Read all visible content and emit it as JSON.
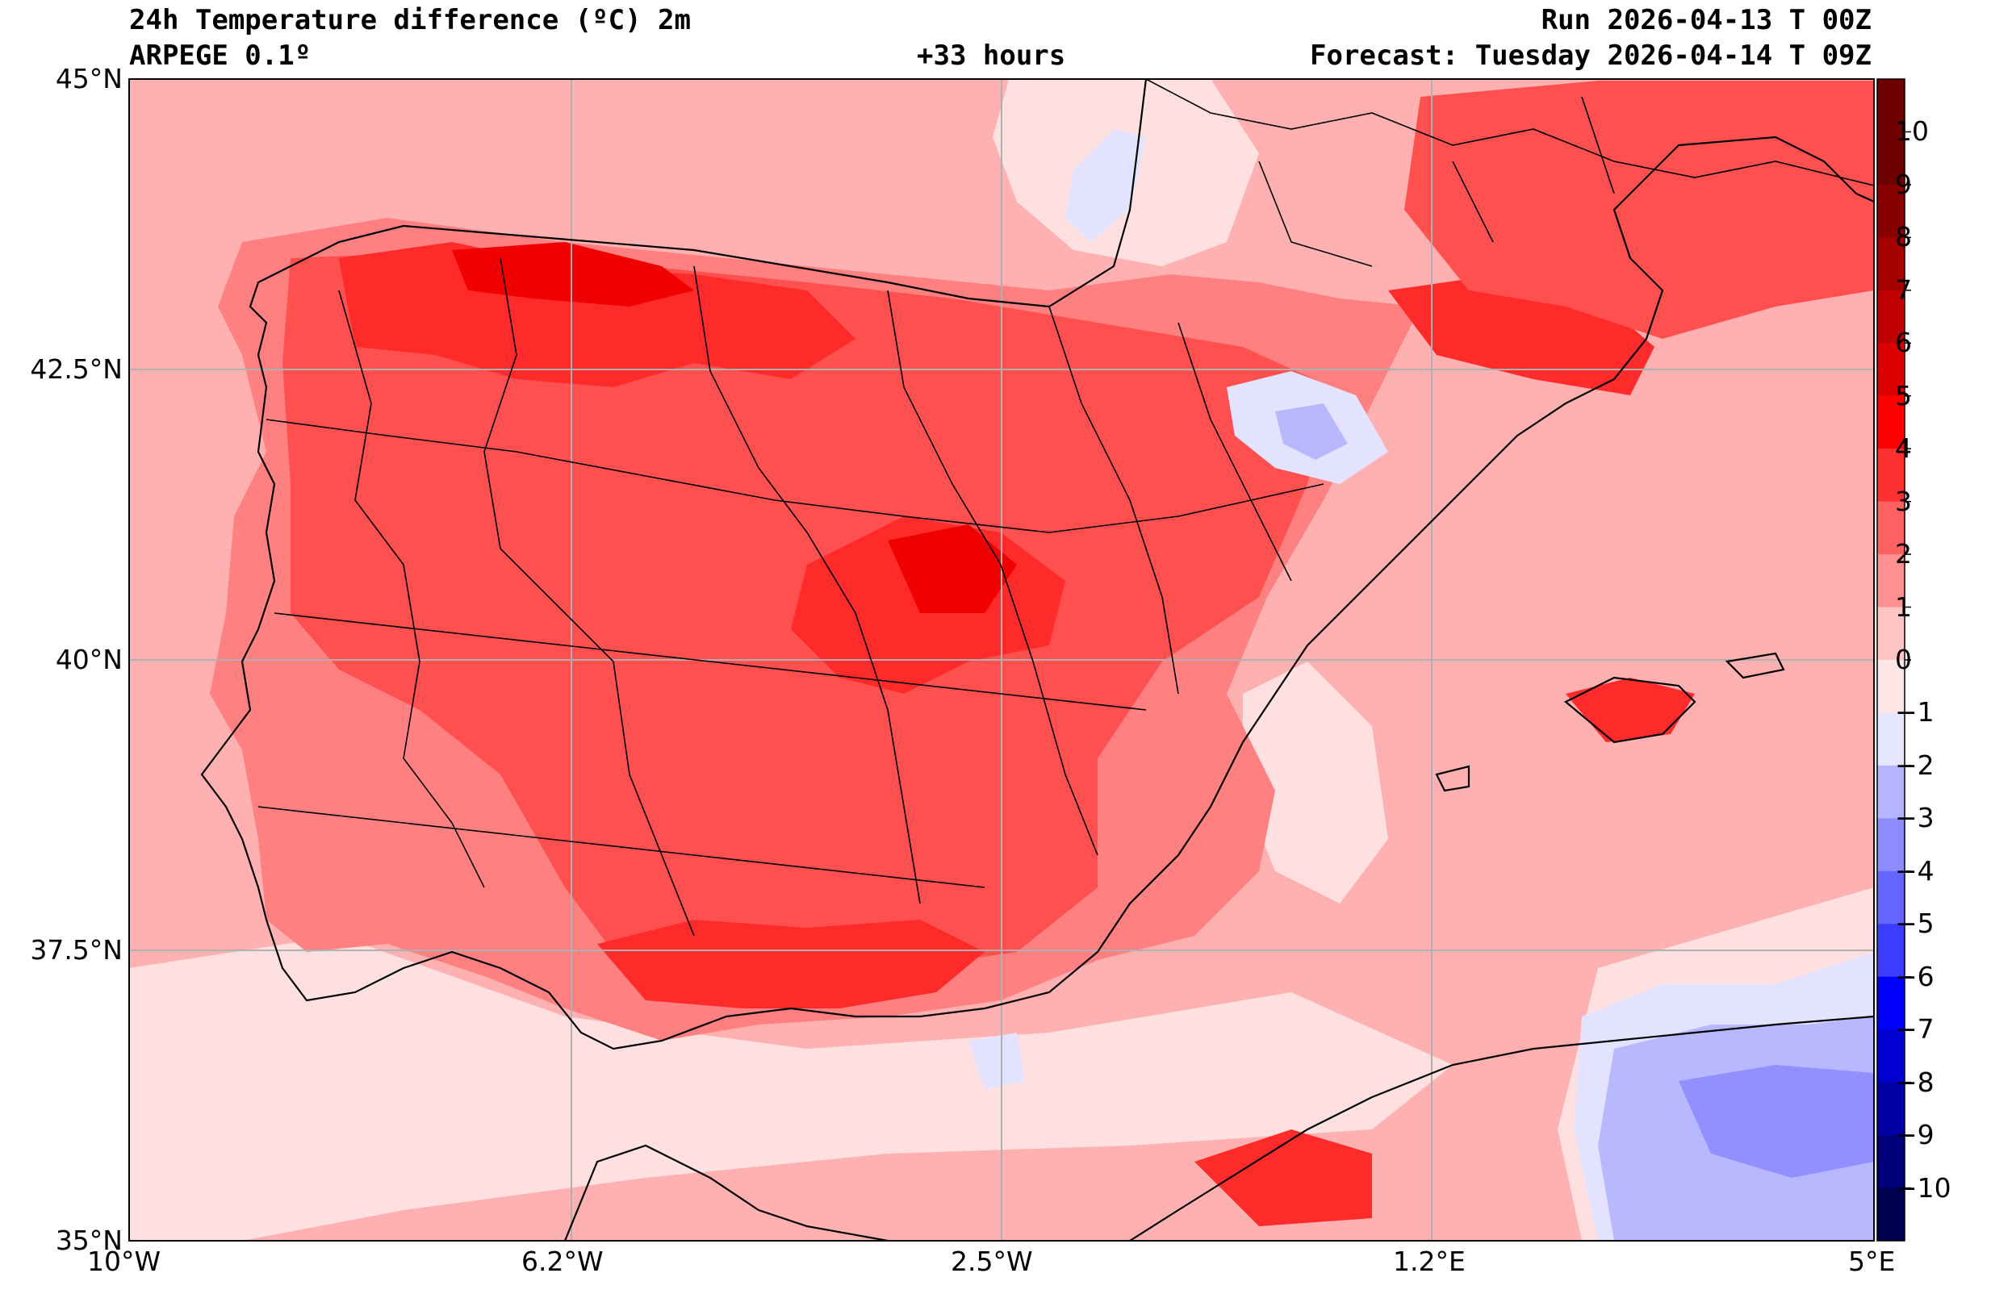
{
  "header": {
    "title": "24h Temperature difference (ºC) 2m",
    "model": "ARPEGE 0.1º",
    "lead": "+33 hours",
    "run": "Run 2026-04-13 T 00Z",
    "forecast": "Forecast: Tuesday 2026-04-14 T 09Z"
  },
  "axes": {
    "lat_labels": [
      "45°N",
      "42.5°N",
      "40°N",
      "37.5°N",
      "35°N"
    ],
    "lon_labels": [
      "10°W",
      "6.2°W",
      "2.5°W",
      "1.2°E",
      "5°E"
    ]
  },
  "colorbar": {
    "labels": [
      "10",
      "9",
      "8",
      "7",
      "6",
      "5",
      "4",
      "3",
      "2",
      "1",
      "0",
      "−1",
      "−2",
      "−3",
      "−4",
      "−5",
      "−6",
      "−7",
      "−8",
      "−9",
      "−10"
    ],
    "colors": [
      "#6e0000",
      "#8a0000",
      "#a50000",
      "#c00000",
      "#dd0000",
      "#ff0000",
      "#ff3030",
      "#ff6060",
      "#ff9090",
      "#ffc4c4",
      "#ffe6e6",
      "#e6e6ff",
      "#b4b4ff",
      "#8c8cff",
      "#6464ff",
      "#3c3cff",
      "#0000ff",
      "#0000d2",
      "#0000a5",
      "#00007a",
      "#000050"
    ]
  },
  "map_colors": {
    "0_1": "#ffe0e0",
    "1_2": "#ffb0b0",
    "2_3": "#ff8080",
    "3_4": "#ff5050",
    "4_5": "#ff2a2a",
    "5_6": "#f00000",
    "m1_0": "#e3e3ff",
    "m2_m1": "#b8b8ff",
    "m3_m2": "#9090ff"
  }
}
